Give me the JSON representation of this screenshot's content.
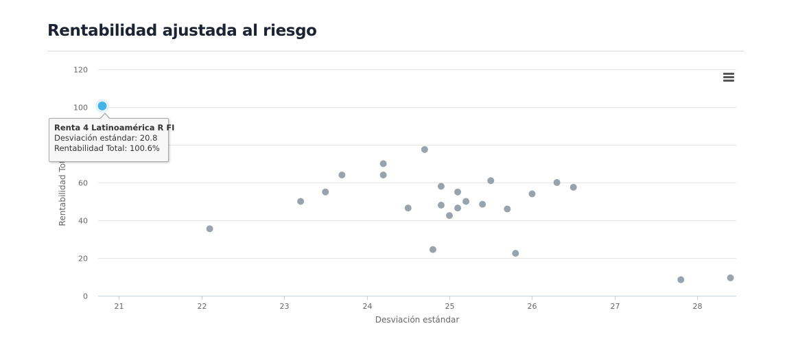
{
  "page": {
    "title": "Rentabilidad ajustada al riesgo"
  },
  "chart_data": {
    "type": "scatter",
    "title": "",
    "xlabel": "Desviación estándar",
    "ylabel": "Rentabilidad Total",
    "xlim": [
      20.75,
      28.47
    ],
    "ylim": [
      0,
      120
    ],
    "x_ticks": [
      21,
      22,
      23,
      24,
      25,
      26,
      27,
      28
    ],
    "y_ticks": [
      0,
      20,
      40,
      60,
      80,
      100,
      120
    ],
    "grid": "horizontal",
    "legend": "none",
    "colors": {
      "points": "#98a3ae",
      "highlight": "#45b5e8",
      "highlight_halo": "#c9e6f5",
      "grid": "#e6e6e6",
      "axis": "#c8d3e0"
    },
    "points": [
      {
        "x": 20.8,
        "y": 100.6,
        "name": "Renta 4 Latinoamérica R FI",
        "highlighted": true
      },
      {
        "x": 22.1,
        "y": 35.5
      },
      {
        "x": 23.2,
        "y": 50.0
      },
      {
        "x": 23.5,
        "y": 55.0
      },
      {
        "x": 23.7,
        "y": 64.0
      },
      {
        "x": 24.2,
        "y": 70.0
      },
      {
        "x": 24.2,
        "y": 64.0
      },
      {
        "x": 24.5,
        "y": 46.5
      },
      {
        "x": 24.7,
        "y": 77.5
      },
      {
        "x": 24.8,
        "y": 24.5
      },
      {
        "x": 24.9,
        "y": 58.0
      },
      {
        "x": 24.9,
        "y": 48.0
      },
      {
        "x": 25.0,
        "y": 42.5
      },
      {
        "x": 25.1,
        "y": 55.0
      },
      {
        "x": 25.1,
        "y": 46.5
      },
      {
        "x": 25.2,
        "y": 50.0
      },
      {
        "x": 25.4,
        "y": 48.5
      },
      {
        "x": 25.5,
        "y": 61.0
      },
      {
        "x": 25.7,
        "y": 46.0
      },
      {
        "x": 25.8,
        "y": 22.5
      },
      {
        "x": 26.0,
        "y": 54.0
      },
      {
        "x": 26.3,
        "y": 60.0
      },
      {
        "x": 26.5,
        "y": 57.5
      },
      {
        "x": 27.8,
        "y": 8.5
      },
      {
        "x": 28.4,
        "y": 9.5
      }
    ],
    "tooltip": {
      "name": "Renta 4 Latinoamérica R FI",
      "line1": "Desviación estándar: 20.8",
      "line2": "Rentabilidad Total: 100.6%"
    }
  }
}
